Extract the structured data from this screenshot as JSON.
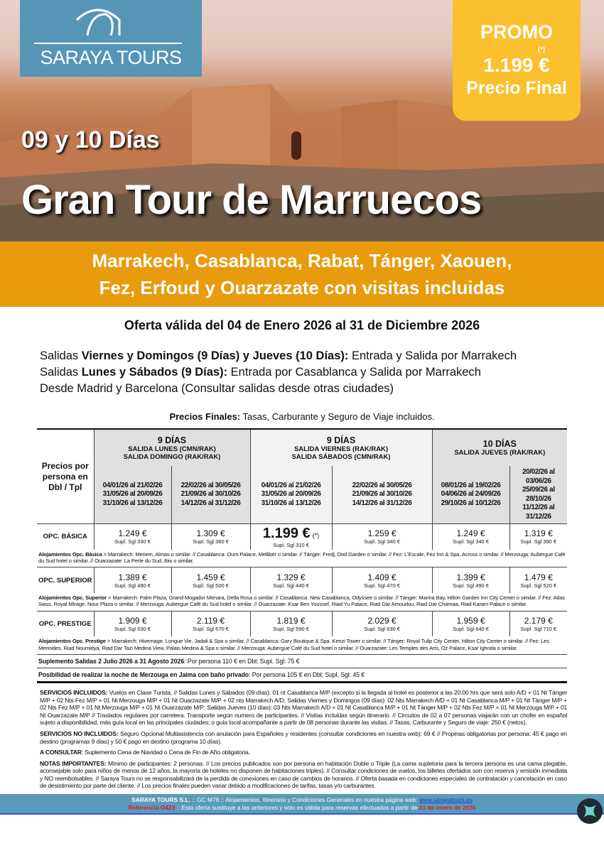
{
  "hero": {
    "logo": "SARAYA TOURS",
    "days": "09 y 10 Días",
    "title": "Gran Tour de Marruecos",
    "promo": {
      "label": "PROMO",
      "asterisk": "(*)",
      "price": "1.199 €",
      "final": "Precio Final"
    }
  },
  "band": {
    "line1": "Marrakech, Casablanca, Rabat, Tánger, Xaouen,",
    "line2": "Fez, Erfoud y Ouarzazate con visitas incluidas"
  },
  "validity": "Oferta válida del 04 de Enero 2026 al 31 de Diciembre 2026",
  "salidas": [
    {
      "pre": "Salidas ",
      "bold": "Viernes y Domingos (9 Días) y Jueves (10 Días):",
      "post": " Entrada y Salida por Marrakech"
    },
    {
      "pre": "Salidas ",
      "bold": "Lunes y Sábados (9 Días):",
      "post": " Entrada por Casablanca y Salida por Marrakech"
    },
    {
      "pre": "Desde Madrid y Barcelona (Consultar salidas desde otras ciudades)",
      "bold": "",
      "post": ""
    }
  ],
  "precios_finales": {
    "bold": "Precios Finales:",
    "text": " Tasas, Carburante y Seguro de Viaje incluidos."
  },
  "table": {
    "corner": "Precios por persona en Dbl / Tpl",
    "groups": [
      {
        "title": "9 DÍAS",
        "sub1": "SALIDA LUNES (CMN/RAK)",
        "sub2": "SALIDA DOMINGO (RAK/RAK)"
      },
      {
        "title": "9 DÍAS",
        "sub1": "SALIDA VIERNES (RAK/RAK)",
        "sub2": "SALIDA SÁBADOS (CMN/RAK)"
      },
      {
        "title": "10 DÍAS",
        "sub1": "SALIDA JUEVES (RAK/RAK)",
        "sub2": ""
      }
    ],
    "dates": [
      [
        "04/01/26 al 21/02/26",
        "31/05/26 al 20/09/26",
        "31/10/26 al 13/12/26"
      ],
      [
        "22/02/26 al 30/05/26",
        "21/09/26 al 30/10/26",
        "14/12/26 al 31/12/26"
      ],
      [
        "04/01/26 al 21/02/26",
        "31/05/26 al 20/09/26",
        "31/10/26 al 13/12/26"
      ],
      [
        "22/02/26 al 30/05/26",
        "21/09/26 al 30/10/26",
        "14/12/26 al 31/12/26"
      ],
      [
        "08/01/26 al 19/02/26",
        "04/06/26 al 24/09/26",
        "29/10/26 al 10/12/26"
      ],
      [
        "20/02/26 al 03/06/26",
        "25/09/26 al 28/10/26",
        "11/12/26 al 31/12/26"
      ]
    ],
    "options": [
      {
        "name": "OPC. BÁSICA",
        "prices": [
          "1.249 €",
          "1.309 €",
          "1.199 €",
          "1.259 €",
          "1.249 €",
          "1.319 €"
        ],
        "supl": [
          "Supl. Sgl 330 €",
          "Supl. Sgl 360 €",
          "Supl. Sgl 310 €",
          "Supl. Sgl 340 €",
          "Supl. Sgl 340 €",
          "Supl. Sgl 390 €"
        ],
        "highlight": 2,
        "highlight_mark": "(*)",
        "aloj_label": "Alojamientos Opc. Básica",
        "aloj": " > Marrakech: Meriem, Almas o similar. // Casablanca: Oum Palace, Melliber o similar. // Tánger: Fredj, Dixil Garden o similar. // Fez: L'Escale, Fez Inn & Spa, Across o similar. // Merzouga: Aubergue Café du Sud hotel o similar. // Ouarzazate: La Perle du Sud, Ibis o similar."
      },
      {
        "name": "OPC. SUPERIOR",
        "prices": [
          "1.389 €",
          "1.459 €",
          "1.329 €",
          "1.409 €",
          "1.399 €",
          "1.479 €"
        ],
        "supl": [
          "Supl. Sgl 480 €",
          "Supl. Sgl 500 €",
          "Supl. Sgl 440 €",
          "Supl. Sgl 470 €",
          "Supl. Sgl 490 €",
          "Supl. Sgl 520 €"
        ],
        "aloj_label": "Alojamientos Opc. Superior",
        "aloj": " > Marrakech: Palm Plaza, Grand Mogador Menara, Della Rosa o similar. // Casablanca: New Casablanca, Odyssee o similar. // Tánger: Marina Bay, Hilton Garden Inn City Center o similar. // Fez: Atlas Saiss, Royal MIrage, Nour Plaza o similar. // Merzouga: Aubergue Café du Sud hotel o similar. // Ouarzazate: Ksar Ben Youssef, Riad Yu Palace, Riad Dar Amoudou, Riad Dar Chamaa, Riad Karam Palace o similar."
      },
      {
        "name": "OPC. PRESTIGE",
        "prices": [
          "1.909 €",
          "2.119 €",
          "1.819 €",
          "2.029 €",
          "1.959 €",
          "2.179 €"
        ],
        "supl": [
          "Supl. Sgl 630 €",
          "Supl. Sgl 670 €",
          "Supl. Sgl 590 €",
          "Supl. Sgl 630 €",
          "Supl. Sgl 640 €",
          "Supl. Sgl 710 €"
        ],
        "aloj_label": "Alojamientos Opc. Prestige",
        "aloj": " > Marrakech: Hivernage, Longue Vie, Jadali & Spa o similar. // Casablanca: Gary Boutique & Spa. Kenzi Tower o similar. // Tánger: Royal Tulip City Center, Hilton City Center o similar. // Fez: Les Merinides, Riad Noumidya, Riad Dar Tazi Medina View, Palais Medina & Spa o similar. // Merzouga: Aubergue Café du Sud hotel o similar.  // Ouarzazate: Les Temples des Arts, Oz Palace, Ksar Ighnda o similar."
      }
    ],
    "notes": [
      {
        "bold": "Suplemento Salidas 2 Julio 2026  a 31 Agosto 2026",
        "text": ": Por persona 110 € en Dbl;  Supl. Sgl: 75 €"
      },
      {
        "bold": "Posibilidad de realizar la noche de Merzouga en Jaima con baño privado",
        "text": ": Por persona 105 € en Dbl; Supl. Sgl: 45 €"
      }
    ]
  },
  "info": [
    {
      "bold": "SERVICIOS INCLUIDOS:",
      "text": " Vuelos en Clase Turista. // Salidas Lunes y Sábados (09 días): 01 nt Casablanca M/P (excepto si la llegada al hotel es posterior a las 20.00 hrs que será solo A/D + 01 Nt Tánger M/P + 02 Nts Fez M/P + 01 Nt Merzouga M/P + 01 Nt Ouarzazate M/P + 02 nts Marrakech A/D; Salidas Viernes  y Domingos (09 días): 02 Nts Marrakech A/D + 01 Nt Casablanca M/P + 01 Nt Tánger M/P + 02 Nts Fez M/P + 01 Nt Merzouga M/P + 01 Nt Ouarzazate M/P; Salidas Jueves (10 días): 03 Nts Marrakech A/D + 01 Nt Casablanca M/P + 01 Nt Tánger M/P + 02 Nts Fez M/P + 01 Nt Merzouga M/P + 01 Nt Ouarzazate M/P // Traslados regulares por carretera. Transporte según numero de participantes. // Visitas incluidas según itinerario. // Circuitos de 02 a 07 personas viajarán con un chofer en español sujeto a disponibilidad, más guía local en las principales ciudades; o guía local acompañante a partir de 08 personas durante las visitas. // Tasas, Carburante y Seguro de viaje: 250 € (netos)."
    },
    {
      "bold": "SERVICIOS NO INCLUIDOS:",
      "text": " Seguro Opcional Multiasistencia con anulación para Españoles y residentes (consultar condiciones en nuestra web): 69 € // Propinas obligatorias por persona: 45 € pago en destino (programas 9 días) y 50 € pago en destino (programa 10 días)."
    },
    {
      "bold": "A CONSULTAR",
      "text": ": Suplemento Cena de Navidad o Cena de Fin de Año obligatoria."
    },
    {
      "bold": "NOTAS IMPORTANTES:",
      "text": " Mínimo de participantes: 2 personas. // Los precios publicados son por persona en habitación Doble o Triple (La cama supletoria para la tercera persona es una cama plegable, aconsejable solo para niños de menos de 12 años, la mayoría de hoteles no disponen de habitaciones triples). // Consultar condiciones de vuelos, los billetes ofertados son con reserva y emisión inmediata y NO reembolsables. // Saraya Tours no se responsabilizará de la perdida de conexiones en caso de cambios de horarios. // Oferta basada en condiciones especiales de contratación y cancelación en caso de desistimiento por parte del cliente. // Los precios finales pueden variar debido a modificaciones de tarifas, tasas y/o carburantes."
    }
  ],
  "footer": {
    "company": "SARAYA TOURS S.L.",
    "line1": " :: GC M76 ::  Alojamientos, Itinerario y Condiciones Generales en nuestra página web:  ",
    "web": "www.sarayatours.es",
    "ref": "Referencia O423",
    "line2": " :: Esta oferta sustituye a las anteriores y solo es válida para reservas efectuadas a partir de ",
    "date": "21 de enero de 2026"
  },
  "colors": {
    "logo_bg": "#5596b7",
    "promo": "#fbc02d",
    "band": "#e89b0d",
    "footer": "#5a9bbb",
    "ref": "#e0201a"
  }
}
